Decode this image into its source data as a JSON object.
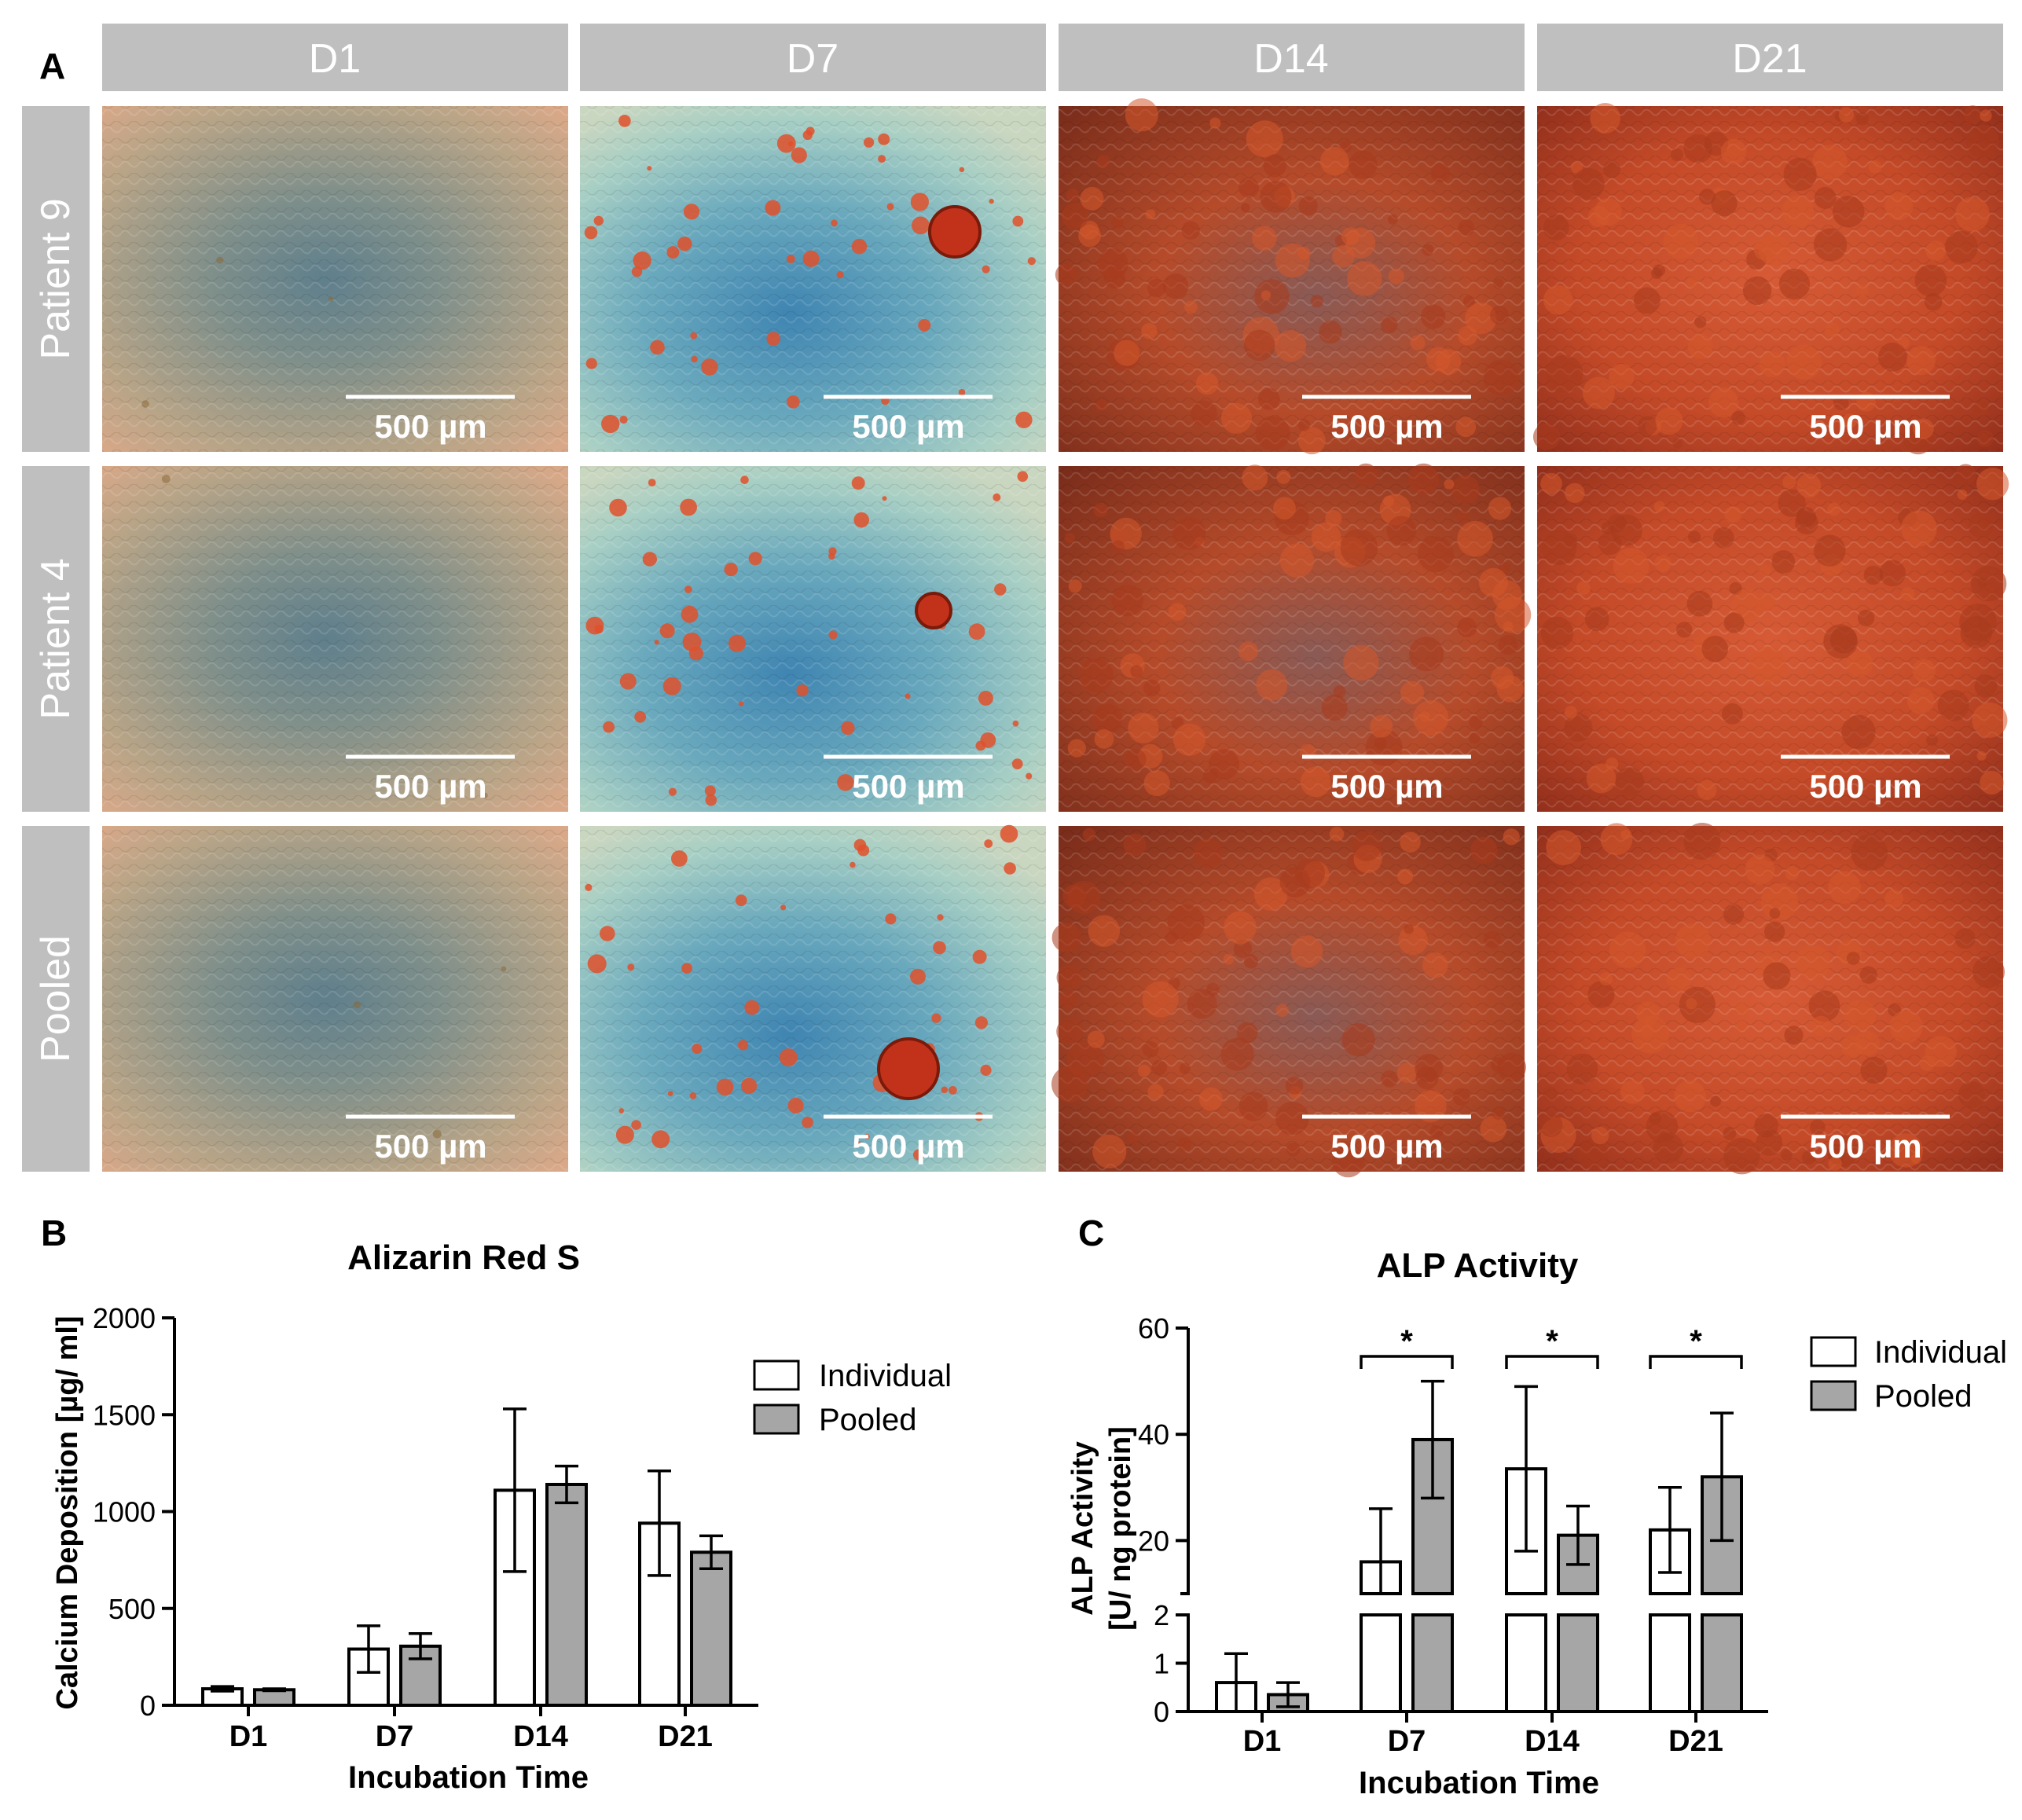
{
  "panel_labels": {
    "a": "A",
    "b": "B",
    "c": "C"
  },
  "panel_a": {
    "column_headers": [
      "D1",
      "D7",
      "D14",
      "D21"
    ],
    "row_headers": [
      "Patient 9",
      "Patient 4",
      "Pooled"
    ],
    "scale_bar_label": "500 µm",
    "header_bg": "#bfbfbf",
    "header_text_color": "#ffffff",
    "stain_colors": {
      "D1": "#b9a68e",
      "D7": "#6fb0b5",
      "D14": "#b54a26",
      "D21": "#c44a28",
      "nodule": "#c2321a",
      "deposit": "#e0502a"
    }
  },
  "chart_data": [
    {
      "type": "bar",
      "title": "Alizarin Red S",
      "xlabel": "Incubation Time",
      "ylabel": "Calcium Deposition [µg/ ml]",
      "ylim": [
        0,
        2000
      ],
      "yticks": [
        "0",
        "500",
        "1000",
        "1500",
        "2000"
      ],
      "categories": [
        "D1",
        "D7",
        "D14",
        "D21"
      ],
      "series": [
        {
          "name": "Individual",
          "color": "#ffffff",
          "values": [
            85,
            290,
            1110,
            940
          ],
          "errors": [
            12,
            120,
            420,
            270
          ]
        },
        {
          "name": "Pooled",
          "color": "#a6a6a6",
          "values": [
            80,
            305,
            1140,
            790
          ],
          "errors": [
            5,
            65,
            95,
            85
          ]
        }
      ],
      "legend_position": "top-right",
      "grid": false
    },
    {
      "type": "bar",
      "title": "ALP Activity",
      "xlabel": "Incubation  Time",
      "ylabel": [
        "ALP Activity",
        "[U/ ng protein]"
      ],
      "axis_break": {
        "lower_range": [
          0,
          2
        ],
        "upper_range": [
          10,
          60
        ]
      },
      "lower_yticks": [
        "0",
        "1",
        "2"
      ],
      "upper_yticks": [
        "20",
        "40",
        "60"
      ],
      "categories": [
        "D1",
        "D7",
        "D14",
        "D21"
      ],
      "series": [
        {
          "name": "Individual",
          "color": "#ffffff",
          "values": [
            0.6,
            16,
            33.5,
            22
          ],
          "errors": [
            0.6,
            10,
            15.5,
            8
          ]
        },
        {
          "name": "Pooled",
          "color": "#a6a6a6",
          "values": [
            0.35,
            39,
            21,
            32
          ],
          "errors": [
            0.25,
            11,
            5.5,
            12
          ]
        }
      ],
      "significance": [
        "*",
        "*",
        "*"
      ],
      "legend_position": "top-right",
      "grid": false
    }
  ]
}
